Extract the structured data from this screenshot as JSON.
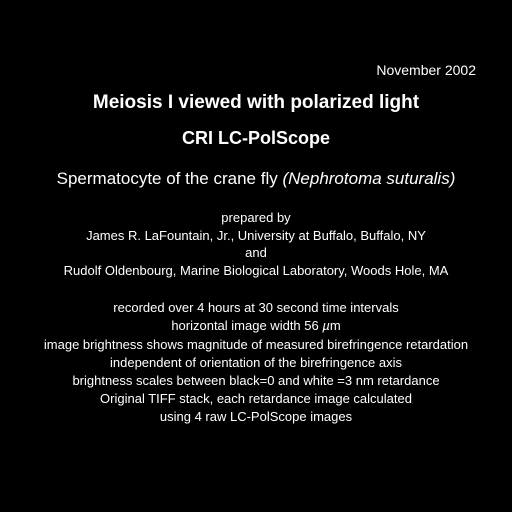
{
  "date": "November 2002",
  "title_line1": "Meiosis I viewed with polarized light",
  "title_line2": "CRI LC-PolScope",
  "subtitle_plain": "Spermatocyte of the crane fly ",
  "subtitle_italic": "(Nephrotoma suturalis)",
  "credits": {
    "prepared_by": "prepared by",
    "author1": "James R. LaFountain, Jr., University at Buffalo, Buffalo, NY",
    "and": "and",
    "author2": "Rudolf Oldenbourg, Marine Biological Laboratory, Woods Hole, MA"
  },
  "details": {
    "line1": "recorded over 4 hours at 30 second time intervals",
    "line2_pre": "horizontal image width 56 ",
    "line2_unit": "µ",
    "line2_post": "m",
    "line3": "image brightness shows magnitude of measured birefringence retardation",
    "line4": "independent of orientation of the birefringence axis",
    "line5": "brightness scales between black=0 and white =3 nm retardance",
    "line6": "Original TIFF stack, each retardance image calculated",
    "line7": "using 4 raw LC-PolScope images"
  },
  "colors": {
    "background": "#000000",
    "text": "#ffffff"
  },
  "fonts": {
    "title_size_pt": 19,
    "subtitle_size_pt": 17,
    "body_size_pt": 13,
    "date_size_pt": 14
  }
}
